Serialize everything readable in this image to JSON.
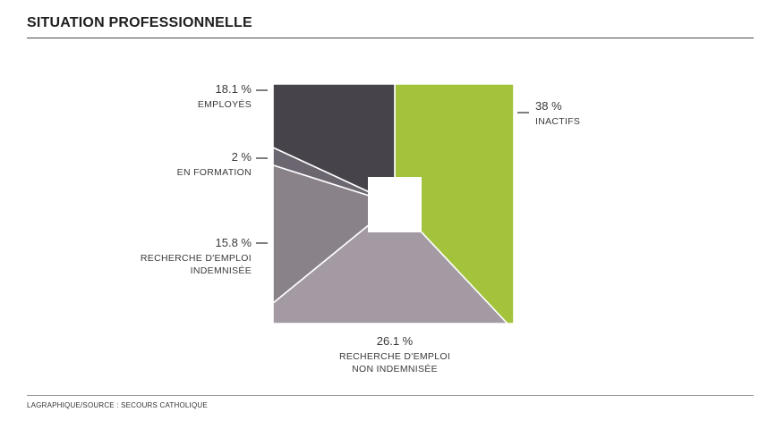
{
  "chart_data": {
    "type": "pie",
    "title": "SITUATION PROFESSIONNELLE",
    "unit": "%",
    "slices": [
      {
        "pct_label": "38 %",
        "label_lines": [
          "INACTIFS"
        ],
        "value": 38,
        "color": "#a3c33c"
      },
      {
        "pct_label": "26.1 %",
        "label_lines": [
          "RECHERCHE D'EMPLOI",
          "NON INDEMNISÉE"
        ],
        "value": 26.1,
        "color": "#a39aa3"
      },
      {
        "pct_label": "15.8 %",
        "label_lines": [
          "RECHERCHE D'EMPLOI",
          "INDEMNISÉE"
        ],
        "value": 15.8,
        "color": "#8a8289"
      },
      {
        "pct_label": "2 %",
        "label_lines": [
          "EN FORMATION"
        ],
        "value": 2,
        "color": "#6b6670"
      },
      {
        "pct_label": "18.1 %",
        "label_lines": [
          "EMPLOYÉS"
        ],
        "value": 18.1,
        "color": "#47434b"
      }
    ],
    "legend": "none",
    "grid": false
  },
  "source": "LAGRAPHIQUE/SOURCE : SECOURS CATHOLIQUE"
}
